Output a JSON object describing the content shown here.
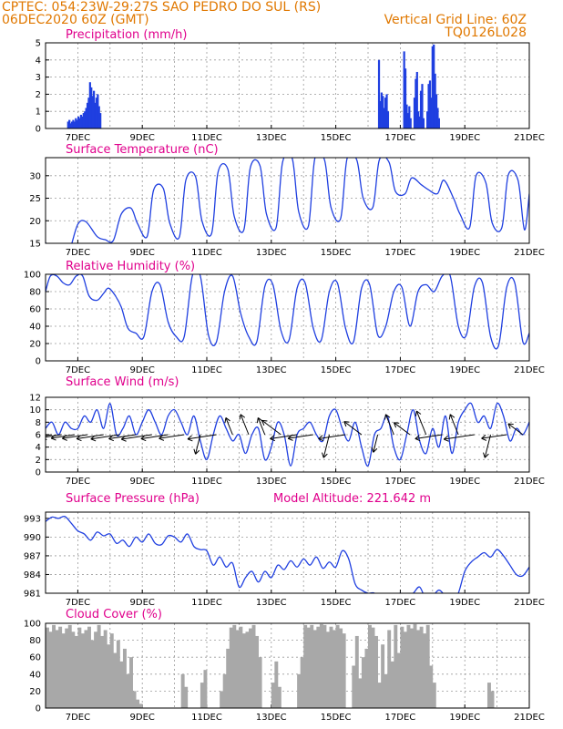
{
  "header": {
    "line1_left": "CPTEC:   054:23W-29:27S  SAO PEDRO DO SUL (RS)",
    "line2_left": "06DEC2020 60Z (GMT)",
    "line1_right": "Vertical Grid Line: 60Z",
    "line2_right": "TQ0126L028"
  },
  "colors": {
    "header": "#e07800",
    "title": "#e0008c",
    "series": "#1f3fe0",
    "cloud": "#a8a8a8",
    "arrow": "#000000"
  },
  "x_tick_labels": [
    "7DEC",
    "9DEC",
    "11DEC",
    "13DEC",
    "15DEC",
    "17DEC",
    "19DEC",
    "21DEC"
  ],
  "chart_data": [
    {
      "type": "bar",
      "title": "Precipitation (mm/h)",
      "ylim": [
        0,
        5
      ],
      "yticks": [
        0,
        1,
        2,
        3,
        4,
        5
      ],
      "x_unit": "days since 06DEC2020 00Z",
      "xlim": [
        0,
        15
      ],
      "x": [
        0.7,
        0.74,
        0.78,
        0.82,
        0.86,
        0.9,
        0.94,
        0.98,
        1.02,
        1.06,
        1.1,
        1.14,
        1.18,
        1.22,
        1.26,
        1.3,
        1.34,
        1.38,
        1.42,
        1.46,
        1.5,
        1.54,
        1.58,
        1.62,
        1.66,
        1.7,
        10.34,
        10.38,
        10.42,
        10.46,
        10.5,
        10.54,
        10.58,
        10.62,
        11.12,
        11.16,
        11.2,
        11.24,
        11.28,
        11.32,
        11.44,
        11.48,
        11.52,
        11.56,
        11.6,
        11.64,
        11.68,
        11.72,
        11.84,
        11.88,
        11.92,
        11.96,
        12.0,
        12.04,
        12.08,
        12.12,
        12.16,
        12.2
      ],
      "values": [
        0.4,
        0.5,
        0.3,
        0.4,
        0.5,
        0.4,
        0.6,
        0.5,
        0.7,
        0.6,
        0.8,
        0.7,
        0.9,
        1.0,
        1.2,
        1.5,
        1.8,
        2.7,
        2.4,
        1.9,
        2.2,
        1.5,
        1.8,
        2.0,
        1.3,
        0.9,
        4.0,
        1.6,
        2.1,
        1.9,
        1.2,
        1.8,
        2.0,
        1.0,
        4.5,
        3.5,
        1.4,
        0.9,
        1.3,
        0.6,
        1.8,
        2.9,
        3.3,
        1.0,
        0.7,
        2.2,
        2.6,
        0.6,
        1.0,
        2.6,
        2.8,
        1.8,
        4.8,
        4.9,
        3.2,
        2.0,
        1.2,
        0.6
      ]
    },
    {
      "type": "line",
      "title": "Surface Temperature (nC)",
      "ylim": [
        15,
        34
      ],
      "yticks": [
        15,
        20,
        25,
        30
      ],
      "x_unit": "days since 06DEC2020 00Z",
      "x": [
        0.0,
        0.15,
        0.3,
        0.55,
        0.75,
        1.0,
        1.25,
        1.6,
        1.85,
        2.1,
        2.35,
        2.65,
        2.85,
        3.15,
        3.35,
        3.65,
        3.85,
        4.15,
        4.35,
        4.65,
        4.85,
        5.15,
        5.35,
        5.65,
        5.85,
        6.15,
        6.35,
        6.65,
        6.85,
        7.15,
        7.35,
        7.65,
        7.85,
        8.15,
        8.35,
        8.65,
        8.85,
        9.15,
        9.35,
        9.65,
        9.85,
        10.15,
        10.35,
        10.65,
        10.85,
        11.15,
        11.35,
        11.65,
        11.85,
        12.15,
        12.35,
        12.65,
        12.85,
        13.15,
        13.35,
        13.65,
        13.85,
        14.15,
        14.35,
        14.65,
        14.85,
        15.0
      ],
      "values": [
        15.2,
        13.2,
        11.8,
        11.2,
        13.5,
        19.2,
        19.8,
        16.5,
        15.8,
        15.6,
        21.5,
        22.8,
        19.4,
        16.5,
        26.8,
        27.2,
        19.5,
        16.4,
        29.0,
        29.8,
        20.0,
        17.2,
        30.8,
        31.5,
        21.0,
        18.0,
        31.8,
        32.2,
        21.5,
        18.5,
        33.0,
        33.8,
        22.0,
        18.8,
        33.8,
        33.5,
        23.0,
        20.5,
        33.8,
        33.5,
        25.0,
        23.0,
        33.5,
        33.0,
        26.5,
        26.0,
        29.5,
        28.0,
        27.0,
        26.0,
        29.0,
        25.0,
        21.5,
        18.5,
        30.0,
        28.5,
        19.5,
        18.5,
        30.2,
        29.0,
        18.0,
        26.0
      ]
    },
    {
      "type": "line",
      "title": "Relative Humidity (%)",
      "ylim": [
        0,
        100
      ],
      "yticks": [
        0,
        20,
        40,
        60,
        80,
        100
      ],
      "x_unit": "days since 06DEC2020 00Z",
      "x": [
        0.0,
        0.15,
        0.35,
        0.55,
        0.75,
        0.95,
        1.15,
        1.35,
        1.6,
        1.8,
        1.95,
        2.15,
        2.35,
        2.55,
        2.8,
        3.05,
        3.3,
        3.55,
        3.8,
        4.05,
        4.3,
        4.55,
        4.8,
        5.05,
        5.3,
        5.55,
        5.8,
        6.05,
        6.3,
        6.55,
        6.8,
        7.05,
        7.3,
        7.55,
        7.8,
        8.05,
        8.3,
        8.55,
        8.8,
        9.05,
        9.3,
        9.55,
        9.8,
        10.05,
        10.3,
        10.55,
        10.8,
        11.05,
        11.3,
        11.55,
        11.8,
        12.05,
        12.3,
        12.55,
        12.8,
        13.05,
        13.3,
        13.55,
        13.8,
        14.05,
        14.3,
        14.55,
        14.8,
        15.0
      ],
      "values": [
        80,
        98,
        98,
        90,
        88,
        98,
        98,
        75,
        70,
        78,
        84,
        76,
        62,
        38,
        32,
        28,
        80,
        88,
        45,
        28,
        28,
        98,
        98,
        30,
        22,
        80,
        98,
        55,
        28,
        22,
        86,
        88,
        35,
        24,
        84,
        90,
        38,
        24,
        80,
        90,
        38,
        22,
        84,
        88,
        30,
        40,
        80,
        85,
        40,
        80,
        88,
        80,
        98,
        98,
        40,
        30,
        86,
        90,
        28,
        18,
        85,
        90,
        22,
        32
      ]
    },
    {
      "type": "line",
      "title": "Surface Wind (m/s)",
      "ylim": [
        0,
        12
      ],
      "yticks": [
        0,
        2,
        4,
        6,
        8,
        10,
        12
      ],
      "x_unit": "days since 06DEC2020 00Z",
      "x": [
        0.0,
        0.2,
        0.4,
        0.6,
        0.8,
        1.0,
        1.2,
        1.4,
        1.6,
        1.8,
        2.0,
        2.2,
        2.4,
        2.6,
        2.8,
        3.0,
        3.2,
        3.4,
        3.6,
        3.8,
        4.0,
        4.2,
        4.4,
        4.6,
        4.8,
        5.0,
        5.2,
        5.4,
        5.6,
        5.8,
        6.0,
        6.2,
        6.4,
        6.6,
        6.8,
        7.0,
        7.2,
        7.4,
        7.6,
        7.8,
        8.0,
        8.2,
        8.4,
        8.6,
        8.8,
        9.0,
        9.2,
        9.4,
        9.6,
        9.8,
        10.0,
        10.2,
        10.4,
        10.6,
        10.8,
        11.0,
        11.2,
        11.4,
        11.6,
        11.8,
        12.0,
        12.2,
        12.4,
        12.6,
        12.8,
        13.0,
        13.2,
        13.4,
        13.6,
        13.8,
        14.0,
        14.2,
        14.4,
        14.6,
        14.8,
        15.0
      ],
      "values": [
        7,
        8,
        6,
        8,
        7,
        7,
        9,
        8,
        10,
        7,
        11,
        6,
        7,
        9,
        6,
        8,
        10,
        8,
        6,
        9,
        10,
        8,
        6,
        9,
        5,
        2,
        6,
        9,
        7,
        5,
        6,
        3,
        6,
        7,
        2,
        4,
        8,
        6,
        1,
        6,
        7,
        8,
        6,
        5,
        9,
        10,
        7,
        5,
        8,
        4,
        1,
        6,
        7,
        9,
        4,
        2,
        6,
        10,
        5,
        3,
        7,
        4,
        9,
        3,
        8,
        10,
        11,
        8,
        9,
        7,
        11,
        9,
        5,
        7,
        6,
        8
      ],
      "arrows": [
        {
          "x": 0.2,
          "dir": "left",
          "len": 18
        },
        {
          "x": 0.5,
          "dir": "left",
          "len": 22
        },
        {
          "x": 0.9,
          "dir": "left",
          "len": 26
        },
        {
          "x": 1.3,
          "dir": "left",
          "len": 28
        },
        {
          "x": 1.8,
          "dir": "left",
          "len": 30
        },
        {
          "x": 2.3,
          "dir": "left",
          "len": 32
        },
        {
          "x": 2.8,
          "dir": "left",
          "len": 30
        },
        {
          "x": 3.3,
          "dir": "left",
          "len": 34
        },
        {
          "x": 3.8,
          "dir": "left",
          "len": 30
        },
        {
          "x": 4.3,
          "dir": "left",
          "len": 28
        },
        {
          "x": 4.8,
          "dir": "down",
          "len": 22
        },
        {
          "x": 5.3,
          "dir": "left",
          "len": 32
        },
        {
          "x": 5.8,
          "dir": "up",
          "len": 20
        },
        {
          "x": 6.3,
          "dir": "up",
          "len": 24
        },
        {
          "x": 6.8,
          "dir": "up",
          "len": 20
        },
        {
          "x": 7.3,
          "dir": "upleft",
          "len": 26
        },
        {
          "x": 7.8,
          "dir": "left",
          "len": 30
        },
        {
          "x": 8.3,
          "dir": "left",
          "len": 28
        },
        {
          "x": 8.8,
          "dir": "down",
          "len": 26
        },
        {
          "x": 9.3,
          "dir": "left",
          "len": 30
        },
        {
          "x": 9.8,
          "dir": "upleft",
          "len": 24
        },
        {
          "x": 10.3,
          "dir": "down",
          "len": 20
        },
        {
          "x": 10.8,
          "dir": "up",
          "len": 24
        },
        {
          "x": 11.3,
          "dir": "upleft",
          "len": 22
        },
        {
          "x": 11.8,
          "dir": "up",
          "len": 28
        },
        {
          "x": 12.3,
          "dir": "left",
          "len": 30
        },
        {
          "x": 12.8,
          "dir": "up",
          "len": 24
        },
        {
          "x": 13.3,
          "dir": "left",
          "len": 34
        },
        {
          "x": 13.8,
          "dir": "down",
          "len": 26
        },
        {
          "x": 14.3,
          "dir": "left",
          "len": 28
        },
        {
          "x": 14.8,
          "dir": "upleft",
          "len": 20
        }
      ]
    },
    {
      "type": "line",
      "title": "Surface Pressure (hPa)",
      "subtitle": "Model Altitude: 221.642 m",
      "ylim": [
        981,
        994
      ],
      "yticks": [
        981,
        984,
        987,
        990,
        993
      ],
      "x_unit": "days since 06DEC2020 00Z",
      "x": [
        0.0,
        0.2,
        0.4,
        0.6,
        0.8,
        1.0,
        1.2,
        1.4,
        1.6,
        1.8,
        2.0,
        2.2,
        2.4,
        2.6,
        2.8,
        3.0,
        3.2,
        3.4,
        3.6,
        3.8,
        4.0,
        4.2,
        4.4,
        4.6,
        4.8,
        5.0,
        5.2,
        5.4,
        5.6,
        5.8,
        6.0,
        6.2,
        6.4,
        6.6,
        6.8,
        7.0,
        7.2,
        7.4,
        7.6,
        7.8,
        8.0,
        8.2,
        8.4,
        8.6,
        8.8,
        9.0,
        9.2,
        9.4,
        9.6,
        9.8,
        10.0,
        10.2,
        10.4,
        10.6,
        10.8,
        11.0,
        11.2,
        11.4,
        11.6,
        11.8,
        12.0,
        12.2,
        12.4,
        12.6,
        12.8,
        13.0,
        13.2,
        13.4,
        13.6,
        13.8,
        14.0,
        14.2,
        14.4,
        14.6,
        14.8,
        15.0
      ],
      "values": [
        992.5,
        993.2,
        993.0,
        993.3,
        992.2,
        991.0,
        990.5,
        989.5,
        990.8,
        990.2,
        990.5,
        989.0,
        989.5,
        988.5,
        990.0,
        989.2,
        990.5,
        989.0,
        988.8,
        990.2,
        990.0,
        989.2,
        990.5,
        988.5,
        988.0,
        987.8,
        985.5,
        986.8,
        985.2,
        985.8,
        982.0,
        983.5,
        984.5,
        982.8,
        984.5,
        983.5,
        985.5,
        984.8,
        986.2,
        985.2,
        986.5,
        985.5,
        986.8,
        985.0,
        986.0,
        985.2,
        987.8,
        986.5,
        982.5,
        981.5,
        981.0,
        981.0,
        979.8,
        979.0,
        980.5,
        981.0,
        980.5,
        981.0,
        982.0,
        980.0,
        980.5,
        981.5,
        980.5,
        979.5,
        981.0,
        984.5,
        986.0,
        986.8,
        987.5,
        986.8,
        988.0,
        987.0,
        985.5,
        984.0,
        983.8,
        985.2
      ]
    },
    {
      "type": "area",
      "title": "Cloud Cover (%)",
      "ylim": [
        0,
        100
      ],
      "yticks": [
        0,
        20,
        40,
        60,
        80,
        100
      ],
      "x_unit": "days since 06DEC2020 00Z",
      "x": [
        0.0,
        0.1,
        0.2,
        0.3,
        0.4,
        0.5,
        0.6,
        0.7,
        0.8,
        0.9,
        1.0,
        1.1,
        1.2,
        1.3,
        1.4,
        1.5,
        1.6,
        1.7,
        1.8,
        1.9,
        2.0,
        2.1,
        2.2,
        2.3,
        2.4,
        2.5,
        2.6,
        2.7,
        2.8,
        2.9,
        3.0,
        3.1,
        3.2,
        3.3,
        3.4,
        3.5,
        3.6,
        3.7,
        3.8,
        3.9,
        4.0,
        4.1,
        4.2,
        4.3,
        4.4,
        4.5,
        4.6,
        4.7,
        4.8,
        4.9,
        5.0,
        5.1,
        5.2,
        5.3,
        5.4,
        5.5,
        5.6,
        5.7,
        5.8,
        5.9,
        6.0,
        6.1,
        6.2,
        6.3,
        6.4,
        6.5,
        6.6,
        6.7,
        6.8,
        6.9,
        7.0,
        7.1,
        7.2,
        7.3,
        7.4,
        7.5,
        7.6,
        7.7,
        7.8,
        7.9,
        8.0,
        8.1,
        8.2,
        8.3,
        8.4,
        8.5,
        8.6,
        8.7,
        8.8,
        8.9,
        9.0,
        9.1,
        9.2,
        9.3,
        9.4,
        9.5,
        9.6,
        9.7,
        9.8,
        9.9,
        10.0,
        10.1,
        10.2,
        10.3,
        10.4,
        10.5,
        10.6,
        10.7,
        10.8,
        10.9,
        11.0,
        11.1,
        11.2,
        11.3,
        11.4,
        11.5,
        11.6,
        11.7,
        11.8,
        11.9,
        12.0,
        12.1,
        12.2,
        12.3,
        12.4,
        12.5,
        12.6,
        12.7,
        12.8,
        12.9,
        13.0,
        13.1,
        13.2,
        13.3,
        13.4,
        13.5,
        13.6,
        13.7,
        13.8,
        13.9,
        14.0,
        14.1,
        14.2,
        14.3,
        14.4,
        14.5,
        14.6,
        14.7,
        14.8,
        14.9
      ],
      "values": [
        95,
        90,
        98,
        92,
        96,
        88,
        94,
        98,
        90,
        85,
        95,
        88,
        92,
        96,
        80,
        90,
        98,
        85,
        92,
        75,
        88,
        65,
        80,
        55,
        70,
        40,
        60,
        20,
        10,
        5,
        0,
        0,
        0,
        0,
        0,
        0,
        0,
        0,
        0,
        0,
        0,
        0,
        40,
        25,
        0,
        0,
        0,
        0,
        30,
        45,
        0,
        0,
        0,
        0,
        20,
        40,
        70,
        95,
        98,
        92,
        96,
        88,
        90,
        94,
        98,
        85,
        60,
        0,
        0,
        0,
        30,
        55,
        25,
        0,
        0,
        0,
        0,
        0,
        40,
        60,
        98,
        95,
        98,
        92,
        96,
        99,
        98,
        90,
        96,
        92,
        98,
        94,
        88,
        0,
        0,
        50,
        85,
        35,
        60,
        70,
        98,
        95,
        85,
        30,
        75,
        40,
        92,
        55,
        98,
        65,
        96,
        90,
        98,
        94,
        99,
        92,
        96,
        88,
        98,
        50,
        30,
        0,
        0,
        0,
        0,
        0,
        0,
        0,
        0,
        0,
        0,
        0,
        0,
        0,
        0,
        0,
        0,
        30,
        20,
        0,
        0,
        0,
        0,
        0,
        0,
        0,
        0,
        0,
        0,
        0
      ]
    }
  ]
}
